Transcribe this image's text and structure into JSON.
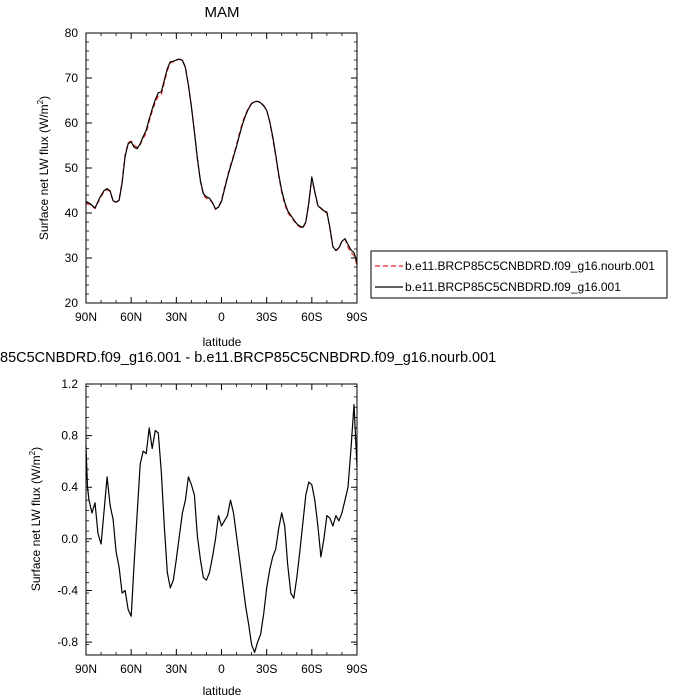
{
  "chart_data": [
    {
      "type": "line",
      "title": "MAM",
      "xlabel": "latitude",
      "ylabel": "Surface net LW flux (W/m",
      "ylabel_sup": "2",
      "ylabel_tail": ")",
      "x_ticks": [
        "90N",
        "60N",
        "30N",
        "0",
        "30S",
        "60S",
        "90S"
      ],
      "x_tick_values": [
        90,
        60,
        30,
        0,
        -30,
        -60,
        -90
      ],
      "xlim": [
        90,
        -90
      ],
      "y_ticks": [
        "20",
        "30",
        "40",
        "50",
        "60",
        "70",
        "80"
      ],
      "y_tick_values": [
        20,
        30,
        40,
        50,
        60,
        70,
        80
      ],
      "ylim": [
        20,
        80
      ],
      "legend_position": "right",
      "series": [
        {
          "name": "b.e11.BRCP85C5CNBDRD.f09_g16.nourb.001",
          "color": "#e0201b",
          "dash": "dashed",
          "x": [
            90,
            87,
            84,
            81,
            78,
            76,
            74,
            72,
            70,
            68,
            66,
            64,
            62,
            60,
            58,
            56,
            54,
            52,
            50,
            48,
            46,
            44,
            42,
            40,
            38,
            36,
            34,
            32,
            30,
            28,
            26,
            24,
            22,
            20,
            18,
            16,
            14,
            12,
            10,
            8,
            6,
            4,
            2,
            0,
            -2,
            -4,
            -6,
            -8,
            -10,
            -12,
            -14,
            -16,
            -18,
            -20,
            -22,
            -24,
            -26,
            -28,
            -30,
            -32,
            -34,
            -36,
            -38,
            -40,
            -42,
            -44,
            -46,
            -48,
            -50,
            -52,
            -54,
            -56,
            -58,
            -60,
            -62,
            -64,
            -66,
            -68,
            -70,
            -72,
            -74,
            -76,
            -78,
            -80,
            -82,
            -84,
            -86,
            -88,
            -90
          ],
          "values": [
            42.3,
            41.8,
            41.0,
            43.0,
            44.8,
            45.2,
            44.8,
            42.6,
            42.4,
            43.0,
            47.0,
            53.0,
            55.6,
            56.0,
            55.0,
            54.6,
            55.2,
            56.6,
            57.8,
            60.4,
            62.6,
            64.6,
            66.0,
            66.3,
            69.0,
            71.6,
            73.4,
            73.6,
            73.9,
            74.2,
            74.0,
            72.5,
            68.5,
            63.8,
            58.2,
            52.0,
            47.0,
            44.0,
            43.2,
            43.0,
            42.2,
            40.8,
            41.4,
            42.8,
            45.6,
            48.2,
            50.6,
            52.8,
            55.2,
            57.8,
            60.2,
            62.0,
            63.4,
            64.4,
            64.8,
            64.8,
            64.6,
            63.9,
            62.8,
            60.2,
            56.6,
            52.6,
            48.2,
            44.6,
            42.0,
            40.1,
            39.2,
            38.3,
            37.4,
            36.9,
            36.6,
            37.9,
            42.0,
            47.8,
            44.6,
            41.6,
            41.0,
            40.3,
            40.0,
            36.6,
            32.4,
            31.6,
            32.2,
            33.6,
            34.2,
            32.4,
            31.2,
            30.6,
            28.4
          ]
        },
        {
          "name": "b.e11.BRCP85C5CNBDRD.f09_g16.001",
          "color": "#000000",
          "dash": "solid",
          "x": [
            90,
            87,
            84,
            81,
            78,
            76,
            74,
            72,
            70,
            68,
            66,
            64,
            62,
            60,
            58,
            56,
            54,
            52,
            50,
            48,
            46,
            44,
            42,
            40,
            38,
            36,
            34,
            32,
            30,
            28,
            26,
            24,
            22,
            20,
            18,
            16,
            14,
            12,
            10,
            8,
            6,
            4,
            2,
            0,
            -2,
            -4,
            -6,
            -8,
            -10,
            -12,
            -14,
            -16,
            -18,
            -20,
            -22,
            -24,
            -26,
            -28,
            -30,
            -32,
            -34,
            -36,
            -38,
            -40,
            -42,
            -44,
            -46,
            -48,
            -50,
            -52,
            -54,
            -56,
            -58,
            -60,
            -62,
            -64,
            -66,
            -68,
            -70,
            -72,
            -74,
            -76,
            -78,
            -80,
            -82,
            -84,
            -86,
            -88,
            -90
          ],
          "values": [
            42.6,
            42.0,
            41.1,
            43.3,
            45.0,
            45.4,
            44.9,
            42.7,
            42.4,
            42.8,
            46.6,
            52.6,
            55.4,
            55.8,
            54.6,
            54.3,
            55.4,
            57.0,
            58.4,
            60.9,
            63.1,
            65.2,
            66.7,
            66.9,
            69.5,
            72.1,
            73.6,
            73.7,
            74.0,
            74.2,
            73.9,
            72.3,
            68.4,
            63.6,
            58.0,
            52.1,
            47.2,
            44.3,
            43.6,
            43.3,
            42.3,
            40.9,
            41.3,
            42.6,
            45.3,
            47.9,
            50.3,
            52.5,
            54.9,
            57.4,
            59.8,
            61.7,
            63.2,
            64.3,
            64.7,
            64.8,
            64.5,
            63.8,
            62.8,
            60.4,
            57.0,
            53.0,
            48.6,
            45.0,
            42.4,
            40.5,
            39.5,
            38.5,
            37.6,
            37.1,
            36.8,
            38.0,
            42.3,
            48.0,
            44.7,
            41.6,
            41.1,
            40.5,
            40.2,
            36.7,
            32.5,
            31.7,
            32.3,
            33.7,
            34.3,
            33.0,
            31.8,
            31.2,
            29.0
          ]
        }
      ]
    },
    {
      "type": "line",
      "title": "85C5CNBDRD.f09_g16.001 - b.e11.BRCP85C5CNBDRD.f09_g16.nourb.001",
      "xlabel": "latitude",
      "ylabel": "Surface net LW flux (W/m",
      "ylabel_sup": "2",
      "ylabel_tail": ")",
      "x_ticks": [
        "90N",
        "60N",
        "30N",
        "0",
        "30S",
        "60S",
        "90S"
      ],
      "x_tick_values": [
        90,
        60,
        30,
        0,
        -30,
        -60,
        -90
      ],
      "xlim": [
        90,
        -90
      ],
      "y_ticks": [
        "-0.8",
        "-0.4",
        "0.0",
        "0.4",
        "0.8",
        "1.2"
      ],
      "y_tick_values": [
        -0.8,
        -0.4,
        0.0,
        0.4,
        0.8,
        1.2
      ],
      "ylim": [
        -0.9,
        1.2
      ],
      "series": [
        {
          "color": "#000000",
          "dash": "solid",
          "x": [
            90,
            89,
            88,
            86,
            84,
            82,
            80,
            78,
            76,
            74,
            72,
            70,
            68,
            66,
            64,
            62,
            60,
            58,
            56,
            54,
            52,
            50,
            48,
            46,
            44,
            42,
            40,
            38,
            36,
            34,
            32,
            30,
            28,
            26,
            24,
            22,
            20,
            18,
            16,
            14,
            12,
            10,
            8,
            6,
            4,
            2,
            0,
            -2,
            -4,
            -6,
            -8,
            -10,
            -12,
            -14,
            -16,
            -18,
            -20,
            -22,
            -24,
            -26,
            -28,
            -30,
            -32,
            -34,
            -36,
            -38,
            -40,
            -42,
            -44,
            -46,
            -48,
            -50,
            -52,
            -54,
            -56,
            -58,
            -60,
            -62,
            -64,
            -66,
            -68,
            -70,
            -72,
            -74,
            -76,
            -78,
            -80,
            -82,
            -84,
            -86,
            -88,
            -90
          ],
          "values": [
            0.72,
            0.4,
            0.3,
            0.2,
            0.28,
            0.04,
            -0.04,
            0.22,
            0.48,
            0.26,
            0.15,
            -0.1,
            -0.22,
            -0.42,
            -0.4,
            -0.55,
            -0.6,
            -0.18,
            0.2,
            0.58,
            0.68,
            0.66,
            0.86,
            0.7,
            0.84,
            0.82,
            0.52,
            0.1,
            -0.26,
            -0.38,
            -0.32,
            -0.16,
            0.02,
            0.2,
            0.3,
            0.48,
            0.42,
            0.34,
            0.02,
            -0.16,
            -0.3,
            -0.32,
            -0.26,
            -0.14,
            0.0,
            0.18,
            0.1,
            0.14,
            0.18,
            0.3,
            0.2,
            0.02,
            -0.16,
            -0.34,
            -0.52,
            -0.66,
            -0.82,
            -0.88,
            -0.8,
            -0.74,
            -0.58,
            -0.38,
            -0.24,
            -0.14,
            -0.08,
            0.08,
            0.2,
            0.1,
            -0.2,
            -0.42,
            -0.46,
            -0.3,
            -0.1,
            0.12,
            0.34,
            0.44,
            0.42,
            0.3,
            0.1,
            -0.14,
            0.0,
            0.18,
            0.16,
            0.1,
            0.18,
            0.14,
            0.2,
            0.3,
            0.4,
            0.7,
            1.04,
            0.56
          ]
        }
      ]
    }
  ]
}
